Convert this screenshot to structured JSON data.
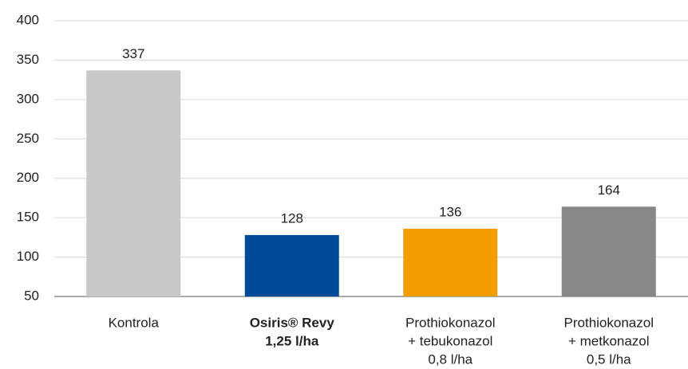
{
  "chart_data": {
    "type": "bar",
    "categories": [
      [
        "Kontrola"
      ],
      [
        "Osiris® Revy",
        "1,25 l/ha"
      ],
      [
        "Prothiokonazol",
        "+ tebukonazol",
        "0,8 l/ha"
      ],
      [
        "Prothiokonazol",
        "+ metkonazol",
        "0,5 l/ha"
      ]
    ],
    "values": [
      337,
      128,
      136,
      164
    ],
    "colors": [
      "#c8c8c8",
      "#004a98",
      "#f39c00",
      "#878787"
    ],
    "bold_categories": [
      1
    ],
    "ylim": [
      50,
      400
    ],
    "yticks": [
      50,
      100,
      150,
      200,
      250,
      300,
      350,
      400
    ],
    "grid": true
  }
}
